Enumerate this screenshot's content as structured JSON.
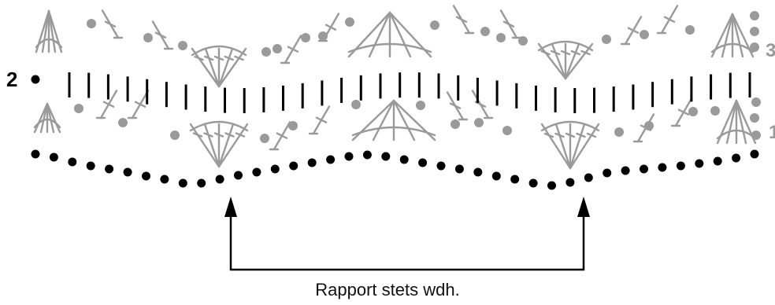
{
  "diagram": {
    "row_labels": {
      "left": "2",
      "right_top": "3",
      "right_bottom": "1"
    },
    "caption": "Rapport stets wdh.",
    "colors": {
      "dark": "#000000",
      "grey": "#9a9a9a"
    }
  }
}
